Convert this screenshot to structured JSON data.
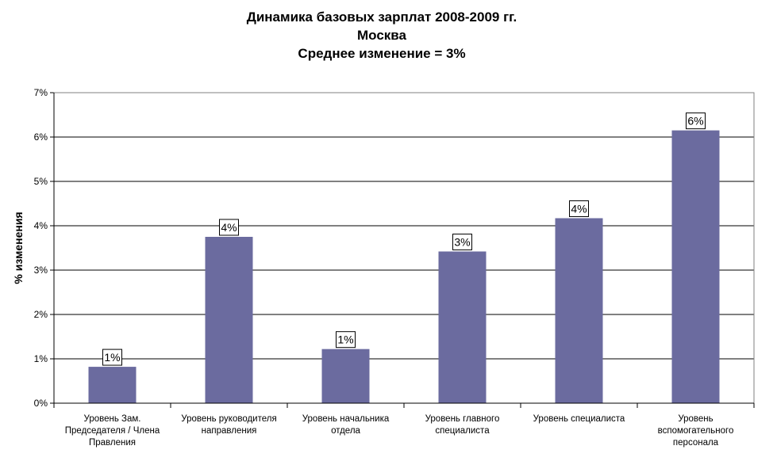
{
  "chart_data": {
    "type": "bar",
    "title_lines": [
      "Динамика базовых зарплат 2008-2009 гг.",
      "Москва",
      "Среднее изменение = 3%"
    ],
    "xlabel": "",
    "ylabel": "% изменения",
    "ylim": [
      0,
      7
    ],
    "yticks": [
      "0%",
      "1%",
      "2%",
      "3%",
      "4%",
      "5%",
      "6%",
      "7%"
    ],
    "categories": [
      [
        "Уровень Зам.",
        "Председателя / Члена",
        "Правления"
      ],
      [
        "Уровень руководителя",
        "направления"
      ],
      [
        "Уровень начальника",
        "отдела"
      ],
      [
        "Уровень главного",
        "специалиста"
      ],
      [
        "Уровень специалиста"
      ],
      [
        "Уровень",
        "вспомогательного",
        "персонала"
      ]
    ],
    "values": [
      0.82,
      3.75,
      1.22,
      3.42,
      4.17,
      6.15
    ],
    "data_labels": [
      "1%",
      "4%",
      "1%",
      "3%",
      "4%",
      "6%"
    ],
    "grid": true,
    "bar_color": "#6b6b9f"
  }
}
